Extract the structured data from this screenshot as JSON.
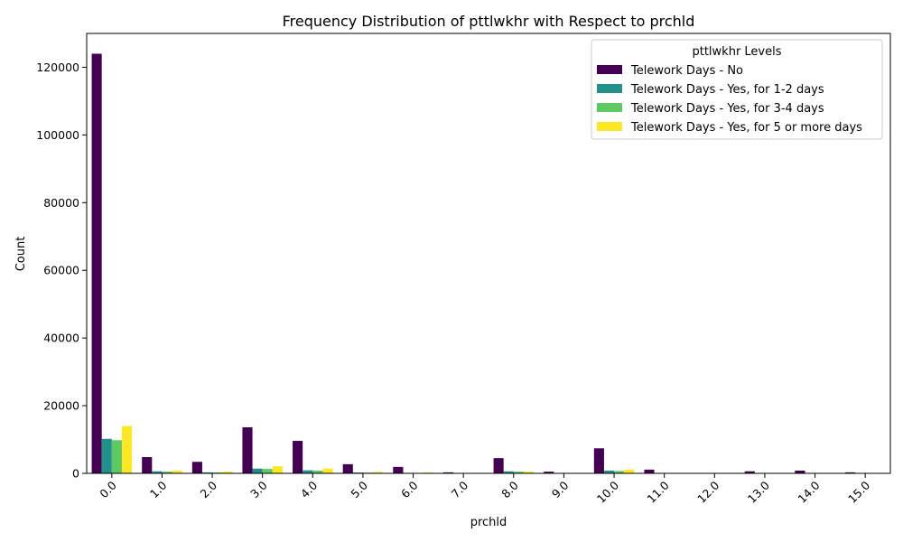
{
  "chart_data": {
    "type": "bar",
    "title": "Frequency Distribution of pttlwkhr with Respect to prchld",
    "xlabel": "prchld",
    "ylabel": "Count",
    "categories": [
      "0.0",
      "1.0",
      "2.0",
      "3.0",
      "4.0",
      "5.0",
      "6.0",
      "7.0",
      "8.0",
      "9.0",
      "10.0",
      "11.0",
      "12.0",
      "13.0",
      "14.0",
      "15.0"
    ],
    "ylim": [
      0,
      130000
    ],
    "yticks": [
      0,
      20000,
      40000,
      60000,
      80000,
      100000,
      120000
    ],
    "legend": {
      "title": "pttlwkhr Levels",
      "position": "top-right"
    },
    "grid": false,
    "series": [
      {
        "name": "Telework Days - No",
        "color": "#440154",
        "values": [
          124000,
          4800,
          3400,
          13600,
          9600,
          2700,
          1900,
          300,
          4500,
          500,
          7400,
          1100,
          100,
          600,
          800,
          300
        ]
      },
      {
        "name": "Telework Days - Yes, for 1-2 days",
        "color": "#21918c",
        "values": [
          10200,
          600,
          300,
          1400,
          900,
          250,
          150,
          20,
          600,
          30,
          800,
          60,
          5,
          30,
          40,
          20
        ]
      },
      {
        "name": "Telework Days - Yes, for 3-4 days",
        "color": "#5ec962",
        "values": [
          9800,
          500,
          250,
          1300,
          800,
          200,
          120,
          15,
          500,
          25,
          700,
          50,
          5,
          25,
          30,
          15
        ]
      },
      {
        "name": "Telework Days - Yes, for 5 or more days",
        "color": "#fde725",
        "values": [
          14000,
          800,
          500,
          2100,
          1400,
          400,
          250,
          30,
          500,
          40,
          1100,
          80,
          10,
          40,
          50,
          30
        ]
      }
    ]
  }
}
